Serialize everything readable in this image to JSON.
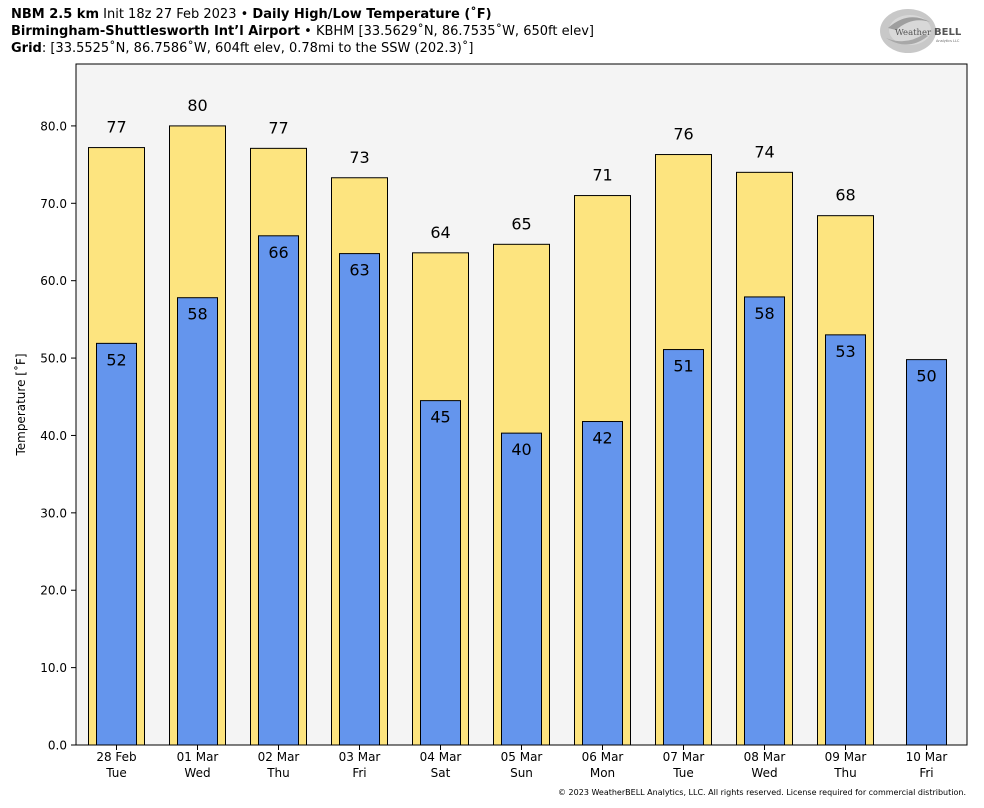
{
  "header": {
    "model": "NBM 2.5 km",
    "init": "Init 18z 27 Feb 2023",
    "product": "Daily High/Low Temperature (˚F)",
    "station_name": "Birmingham-Shuttlesworth Int’l Airport",
    "station_info": "KBHM [33.5629˚N, 86.7535˚W, 650ft elev]",
    "grid_label": "Grid",
    "grid_info": ": [33.5525˚N, 86.7586˚W, 604ft elev, 0.78mi to the SSW (202.3)˚]",
    "bullet": "•"
  },
  "logo": {
    "text_a": "Weather",
    "text_b": "BELL",
    "sub": "Analytics LLC"
  },
  "copyright": "© 2023 WeatherBELL Analytics, LLC. All rights reserved. License required for commercial distribution.",
  "chart_data": {
    "type": "bar",
    "ylabel": "Temperature [˚F]",
    "ylim": [
      0,
      88
    ],
    "yticks": [
      0,
      10,
      20,
      30,
      40,
      50,
      60,
      70,
      80
    ],
    "ytick_labels": [
      "0.0",
      "10.0",
      "20.0",
      "30.0",
      "40.0",
      "50.0",
      "60.0",
      "70.0",
      "80.0"
    ],
    "categories": [
      {
        "date": "28 Feb",
        "day": "Tue"
      },
      {
        "date": "01 Mar",
        "day": "Wed"
      },
      {
        "date": "02 Mar",
        "day": "Thu"
      },
      {
        "date": "03 Mar",
        "day": "Fri"
      },
      {
        "date": "04 Mar",
        "day": "Sat"
      },
      {
        "date": "05 Mar",
        "day": "Sun"
      },
      {
        "date": "06 Mar",
        "day": "Mon"
      },
      {
        "date": "07 Mar",
        "day": "Tue"
      },
      {
        "date": "08 Mar",
        "day": "Wed"
      },
      {
        "date": "09 Mar",
        "day": "Thu"
      },
      {
        "date": "10 Mar",
        "day": "Fri"
      }
    ],
    "series": [
      {
        "values": [
          77.2,
          80.0,
          77.1,
          73.3,
          63.6,
          64.7,
          71.0,
          76.3,
          74.0,
          68.4,
          null
        ],
        "labels": [
          "77",
          "80",
          "77",
          "73",
          "64",
          "65",
          "71",
          "76",
          "74",
          "68",
          ""
        ],
        "color": "#fde47f"
      },
      {
        "values": [
          51.9,
          57.8,
          65.8,
          63.5,
          44.5,
          40.3,
          41.8,
          51.1,
          57.9,
          53.0,
          49.8
        ],
        "labels": [
          "52",
          "58",
          "66",
          "63",
          "45",
          "40",
          "42",
          "51",
          "58",
          "53",
          "50"
        ],
        "color": "#6495ed"
      }
    ],
    "plot_background": "#f4f4f4",
    "grid": false,
    "legend": "none"
  }
}
